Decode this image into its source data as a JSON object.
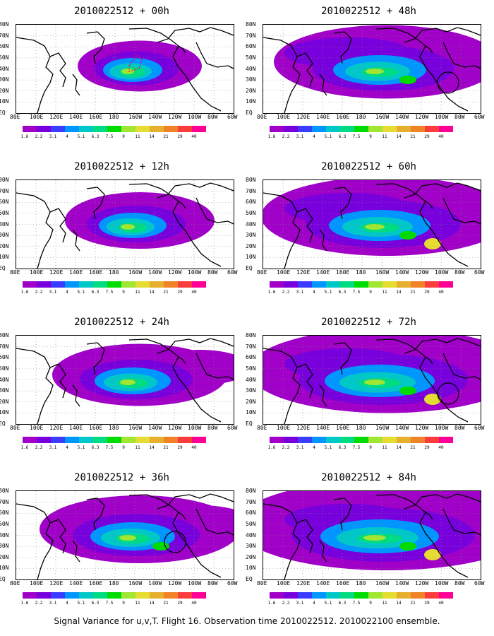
{
  "panels": [
    {
      "title": "2010022512 + 00h",
      "col": 0,
      "row": 0,
      "level": 1,
      "circle": false,
      "dashed": true
    },
    {
      "title": "2010022512 + 48h",
      "col": 1,
      "row": 0,
      "level": 5,
      "circle": true,
      "dashed": false
    },
    {
      "title": "2010022512 + 12h",
      "col": 0,
      "row": 1,
      "level": 2,
      "circle": false,
      "dashed": false
    },
    {
      "title": "2010022512 + 60h",
      "col": 1,
      "row": 1,
      "level": 6,
      "circle": false,
      "dashed": false
    },
    {
      "title": "2010022512 + 24h",
      "col": 0,
      "row": 2,
      "level": 3,
      "circle": false,
      "dashed": false
    },
    {
      "title": "2010022512 + 72h",
      "col": 1,
      "row": 2,
      "level": 7,
      "circle": true,
      "dashed": false
    },
    {
      "title": "2010022512 + 36h",
      "col": 0,
      "row": 3,
      "level": 4,
      "circle": true,
      "dashed": false
    },
    {
      "title": "2010022512 + 84h",
      "col": 1,
      "row": 3,
      "level": 8,
      "circle": false,
      "dashed": false
    }
  ],
  "lat_labels": [
    "80N",
    "70N",
    "60N",
    "50N",
    "40N",
    "30N",
    "20N",
    "10N",
    "EQ"
  ],
  "lon_labels": [
    "80E",
    "100E",
    "120E",
    "140E",
    "160E",
    "180",
    "160W",
    "140W",
    "120W",
    "100W",
    "80W",
    "60W"
  ],
  "colorbar": {
    "labels": [
      "1.6",
      "2.2",
      "3.1",
      "4",
      "5.1",
      "6.3",
      "7.5",
      "9",
      "11",
      "14",
      "21",
      "29",
      "40"
    ],
    "colors": [
      "#a000c8",
      "#7800dc",
      "#3c3cff",
      "#0096ff",
      "#00c8c8",
      "#00dc82",
      "#00dc00",
      "#a0e632",
      "#e6dc32",
      "#e6af2d",
      "#f08228",
      "#fa3c3c",
      "#ff0096"
    ]
  },
  "footer": "Signal Variance for u,v,T. Flight 16. Observation time 2010022512. 2010022100 ensemble."
}
